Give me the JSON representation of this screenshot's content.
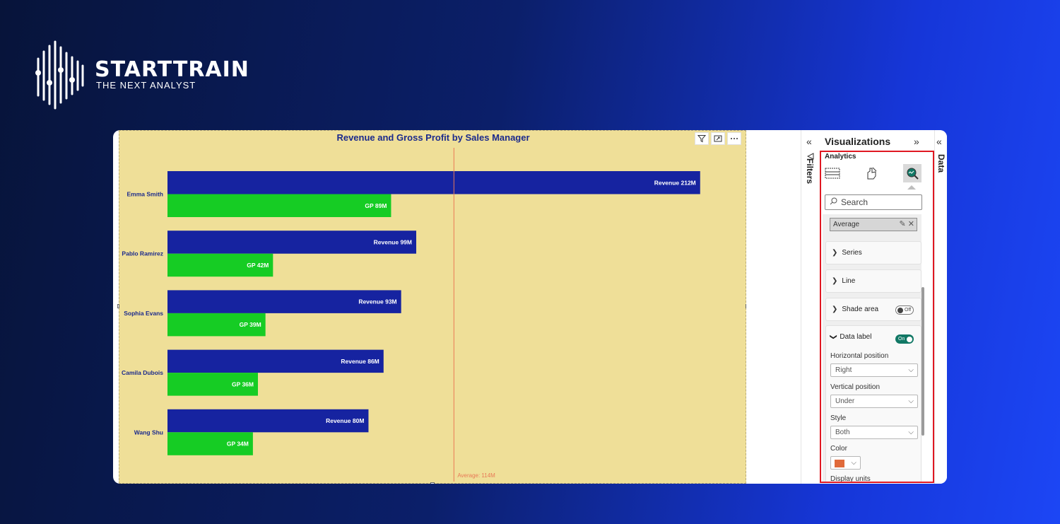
{
  "brand": {
    "name": "STARTTRAIN",
    "tagline": "THE NEXT ANALYST"
  },
  "report": {
    "chart_title": "Revenue and Gross Profit by Sales Manager",
    "toolbar": {
      "filter_icon": "filter-icon",
      "focus_icon": "focus-mode-icon",
      "more_icon": "more-options-icon"
    }
  },
  "chart_data": {
    "type": "bar",
    "orientation": "horizontal",
    "title": "Revenue and Gross Profit by Sales Manager",
    "categories": [
      "Emma Smith",
      "Pablo Ramirez",
      "Sophia Evans",
      "Camila Dubois",
      "Wang Shu"
    ],
    "series": [
      {
        "name": "Revenue",
        "color": "#1623a0",
        "values": [
          212,
          99,
          93,
          86,
          80
        ],
        "labels": [
          "Revenue 212M",
          "Revenue 99M",
          "Revenue 93M",
          "Revenue 86M",
          "Revenue 80M"
        ]
      },
      {
        "name": "GP",
        "color": "#16cc24",
        "values": [
          89,
          42,
          39,
          36,
          34
        ],
        "labels": [
          "GP 89M",
          "GP 42M",
          "GP 39M",
          "GP 36M",
          "GP 34M"
        ]
      }
    ],
    "xlim": [
      0,
      225
    ],
    "reference_line": {
      "value": 114,
      "label": "Average: 114M",
      "color": "#e87a57"
    },
    "grid": false,
    "legend": "none"
  },
  "panes": {
    "filters_label": "Filters",
    "data_label": "Data",
    "visualizations": {
      "title": "Visualizations",
      "tab": "Analytics",
      "search_placeholder": "Search",
      "average_chip": "Average",
      "cards": [
        {
          "label": "Series"
        },
        {
          "label": "Line"
        },
        {
          "label": "Shade area",
          "toggle": "Off"
        }
      ],
      "data_label": {
        "title": "Data label",
        "toggle": "On",
        "horizontal_position_label": "Horizontal position",
        "horizontal_position_value": "Right",
        "vertical_position_label": "Vertical position",
        "vertical_position_value": "Under",
        "style_label": "Style",
        "style_value": "Both",
        "color_label": "Color",
        "color_value": "#e06a3a",
        "display_units_label": "Display units"
      }
    }
  }
}
